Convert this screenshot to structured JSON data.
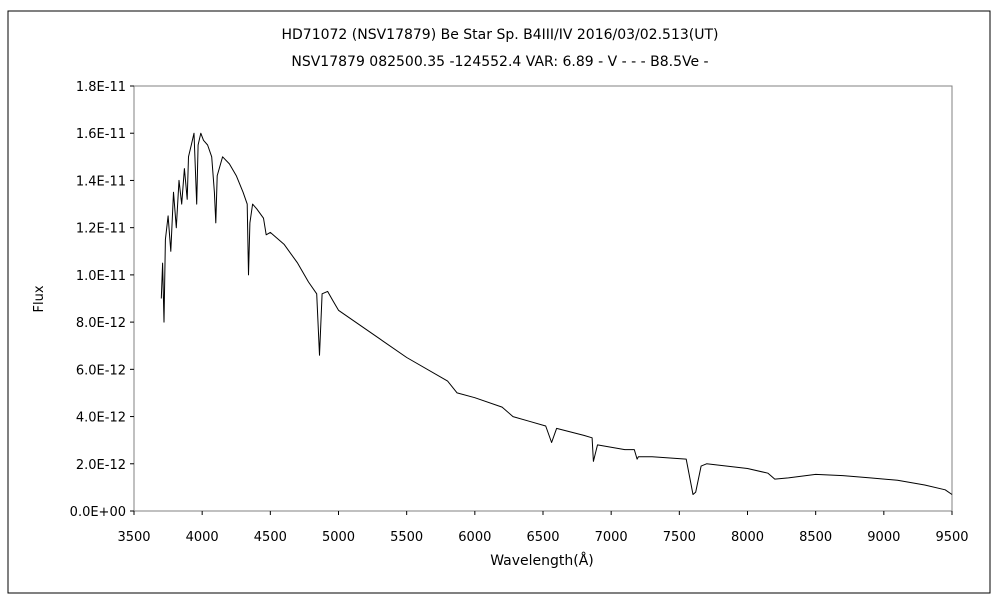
{
  "chart_data": {
    "type": "line",
    "title": "HD71072 (NSV17879)    Be Star    Sp. B4III/IV    2016/03/02.513(UT)",
    "subtitle": "NSV17879 082500.35 -124552.4 VAR: 6.89 - V - - - B8.5Ve -",
    "xlabel": "Wavelength(Å)",
    "ylabel": "Flux",
    "xlim": [
      3500,
      9500
    ],
    "ylim": [
      0,
      1.8e-11
    ],
    "x_ticks": [
      "3500",
      "4000",
      "4500",
      "5000",
      "5500",
      "6000",
      "6500",
      "7000",
      "7500",
      "8000",
      "8500",
      "9000",
      "9500"
    ],
    "y_ticks": [
      "0.0E+00",
      "2.0E-12",
      "4.0E-12",
      "6.0E-12",
      "8.0E-12",
      "1.0E-11",
      "1.2E-11",
      "1.4E-11",
      "1.6E-11",
      "1.8E-11"
    ],
    "grid": false,
    "series": [
      {
        "x": [
          3700,
          3710,
          3720,
          3730,
          3750,
          3770,
          3790,
          3810,
          3830,
          3850,
          3870,
          3890,
          3900,
          3920,
          3940,
          3960,
          3970,
          3990,
          4010,
          4040,
          4070,
          4090,
          4100,
          4110,
          4150,
          4200,
          4250,
          4300,
          4330,
          4340,
          4350,
          4370,
          4400,
          4450,
          4470,
          4500,
          4600,
          4700,
          4780,
          4840,
          4861,
          4880,
          4920,
          4960,
          5000,
          5200,
          5500,
          5800,
          5870,
          6000,
          6200,
          6280,
          6400,
          6520,
          6563,
          6600,
          6800,
          6860,
          6870,
          6900,
          7100,
          7170,
          7190,
          7200,
          7300,
          7550,
          7600,
          7620,
          7660,
          7700,
          8000,
          8150,
          8200,
          8300,
          8500,
          8700,
          8900,
          9100,
          9300,
          9450,
          9500
        ],
        "y": [
          9e-12,
          1.05e-11,
          8e-12,
          1.15e-11,
          1.25e-11,
          1.1e-11,
          1.35e-11,
          1.2e-11,
          1.4e-11,
          1.3e-11,
          1.45e-11,
          1.32e-11,
          1.5e-11,
          1.55e-11,
          1.6e-11,
          1.3e-11,
          1.55e-11,
          1.6e-11,
          1.57e-11,
          1.55e-11,
          1.5e-11,
          1.35e-11,
          1.22e-11,
          1.42e-11,
          1.5e-11,
          1.47e-11,
          1.42e-11,
          1.35e-11,
          1.3e-11,
          1e-11,
          1.22e-11,
          1.3e-11,
          1.28e-11,
          1.24e-11,
          1.17e-11,
          1.18e-11,
          1.13e-11,
          1.05e-11,
          9.7e-12,
          9.2e-12,
          6.6e-12,
          9.2e-12,
          9.3e-12,
          8.9e-12,
          8.5e-12,
          7.7e-12,
          6.5e-12,
          5.5e-12,
          5e-12,
          4.8e-12,
          4.4e-12,
          4e-12,
          3.8e-12,
          3.6e-12,
          2.9e-12,
          3.5e-12,
          3.2e-12,
          3.1e-12,
          2.1e-12,
          2.8e-12,
          2.6e-12,
          2.6e-12,
          2.2e-12,
          2.3e-12,
          2.3e-12,
          2.2e-12,
          7e-13,
          8e-13,
          1.9e-12,
          2e-12,
          1.8e-12,
          1.6e-12,
          1.35e-12,
          1.4e-12,
          1.55e-12,
          1.5e-12,
          1.4e-12,
          1.3e-12,
          1.1e-12,
          9e-13,
          7e-13
        ]
      }
    ]
  }
}
